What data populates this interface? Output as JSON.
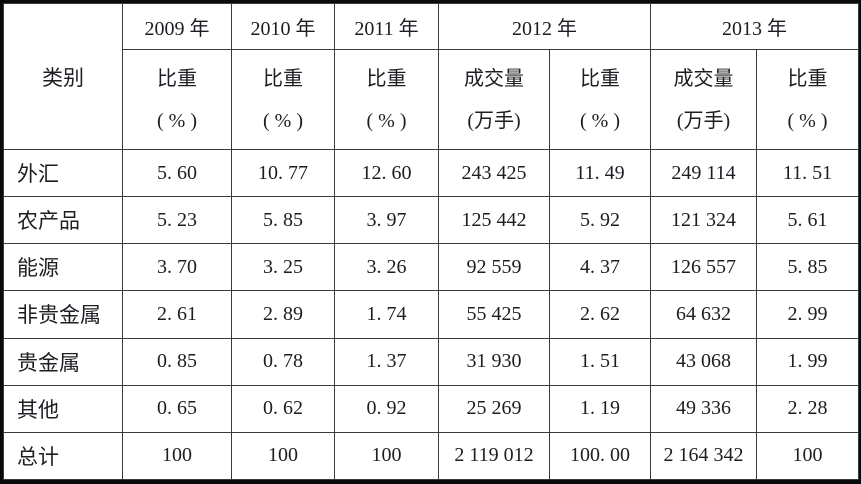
{
  "table": {
    "header": {
      "category_label": "类别",
      "years": [
        "2009 年",
        "2010 年",
        "2011 年",
        "2012 年",
        "2013 年"
      ],
      "subheaders": [
        {
          "line1": "比重",
          "line2": "( % )"
        },
        {
          "line1": "比重",
          "line2": "( % )"
        },
        {
          "line1": "比重",
          "line2": "( % )"
        },
        {
          "line1": "成交量",
          "line2": "(万手)"
        },
        {
          "line1": "比重",
          "line2": "( % )"
        },
        {
          "line1": "成交量",
          "line2": "(万手)"
        },
        {
          "line1": "比重",
          "line2": "( % )"
        }
      ]
    },
    "rows": [
      {
        "category": "外汇",
        "values": [
          "5. 60",
          "10. 77",
          "12. 60",
          "243 425",
          "11. 49",
          "249 114",
          "11. 51"
        ]
      },
      {
        "category": "农产品",
        "values": [
          "5. 23",
          "5. 85",
          "3. 97",
          "125 442",
          "5. 92",
          "121 324",
          "5. 61"
        ]
      },
      {
        "category": "能源",
        "values": [
          "3. 70",
          "3. 25",
          "3. 26",
          "92 559",
          "4. 37",
          "126 557",
          "5. 85"
        ]
      },
      {
        "category": "非贵金属",
        "values": [
          "2. 61",
          "2. 89",
          "1. 74",
          "55 425",
          "2. 62",
          "64 632",
          "2. 99"
        ]
      },
      {
        "category": "贵金属",
        "values": [
          "0. 85",
          "0. 78",
          "1. 37",
          "31 930",
          "1. 51",
          "43 068",
          "1. 99"
        ]
      },
      {
        "category": "其他",
        "values": [
          "0. 65",
          "0. 62",
          "0. 92",
          "25 269",
          "1. 19",
          "49 336",
          "2. 28"
        ]
      },
      {
        "category": "总计",
        "values": [
          "100",
          "100",
          "100",
          "2 119 012",
          "100. 00",
          "2 164 342",
          "100"
        ]
      }
    ],
    "colors": {
      "outer_border": "#0a0a0a",
      "grid_line": "#3a3a3a",
      "text": "#1d1d23",
      "background": "#ffffff"
    }
  }
}
